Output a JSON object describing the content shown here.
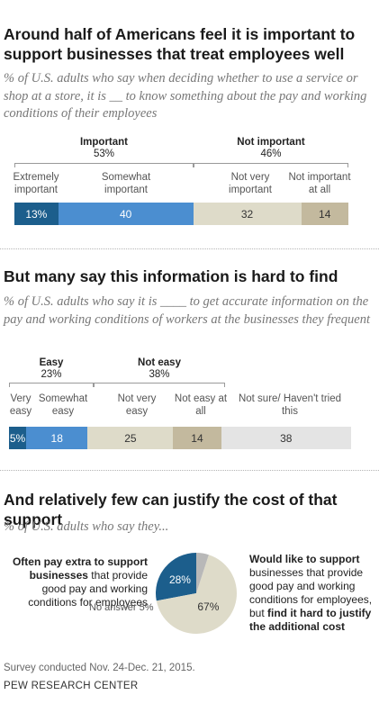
{
  "chart_data": [
    {
      "type": "bar",
      "title": "Around half of Americans feel it is important to support businesses that treat employees well",
      "subtitle": "% of U.S. adults who say when deciding whether to use a service or shop at a store, it is __ to know something about the pay and working conditions of their employees",
      "groups": [
        {
          "label": "Important",
          "value": "53%"
        },
        {
          "label": "Not important",
          "value": "46%"
        }
      ],
      "categories": [
        "Extremely important",
        "Somewhat important",
        "Not very important",
        "Not important at all"
      ],
      "values": [
        13,
        40,
        32,
        14
      ],
      "value_labels": [
        "13%",
        "40",
        "32",
        "14"
      ],
      "colors": [
        "#1c5e8c",
        "#4b8ed0",
        "#dedbc9",
        "#c3b99e"
      ]
    },
    {
      "type": "bar",
      "title": "But many say this information is hard to find",
      "subtitle": "% of U.S. adults who say it is ____ to get accurate information on the pay and working conditions of workers at the businesses they frequent",
      "groups": [
        {
          "label": "Easy",
          "value": "23%"
        },
        {
          "label": "Not easy",
          "value": "38%"
        }
      ],
      "categories": [
        "Very easy",
        "Somewhat easy",
        "Not very easy",
        "Not easy at all",
        "Not sure/ Haven't tried this"
      ],
      "values": [
        5,
        18,
        25,
        14,
        38
      ],
      "value_labels": [
        "5%",
        "18",
        "25",
        "14",
        "38"
      ],
      "colors": [
        "#1c5e8c",
        "#4b8ed0",
        "#dedbc9",
        "#c3b99e",
        "#e4e4e4"
      ]
    },
    {
      "type": "pie",
      "title": "And relatively few can justify the cost of that support",
      "subtitle": "% of U.S. adults who say they...",
      "slices": [
        {
          "label": "Often pay extra to support businesses that provide good pay and working conditions for employees",
          "value": 28,
          "value_label": "28%",
          "color": "#1c5e8c"
        },
        {
          "label": "Would like to support businesses that provide good pay and working conditions for employees, but find it hard to justify the additional cost",
          "value": 67,
          "value_label": "67%",
          "color": "#dedbc9"
        },
        {
          "label": "No answer",
          "value": 5,
          "value_label": "5%",
          "color": "#b8b8b8"
        }
      ]
    }
  ],
  "text": {
    "left_note_bold1": "Often pay extra to support",
    "left_note_bold2": "businesses",
    "left_note_rest": " that provide good pay and working conditions for employees",
    "right_note_bold1": "Would like to support",
    "right_note_mid": " businesses that provide good pay and working conditions for employees, but ",
    "right_note_bold2": "find it hard to justify the additional cost",
    "no_answer": "No answer 5%",
    "footer": "Survey conducted Nov. 24-Dec. 21, 2015.",
    "source": "PEW RESEARCH CENTER"
  }
}
